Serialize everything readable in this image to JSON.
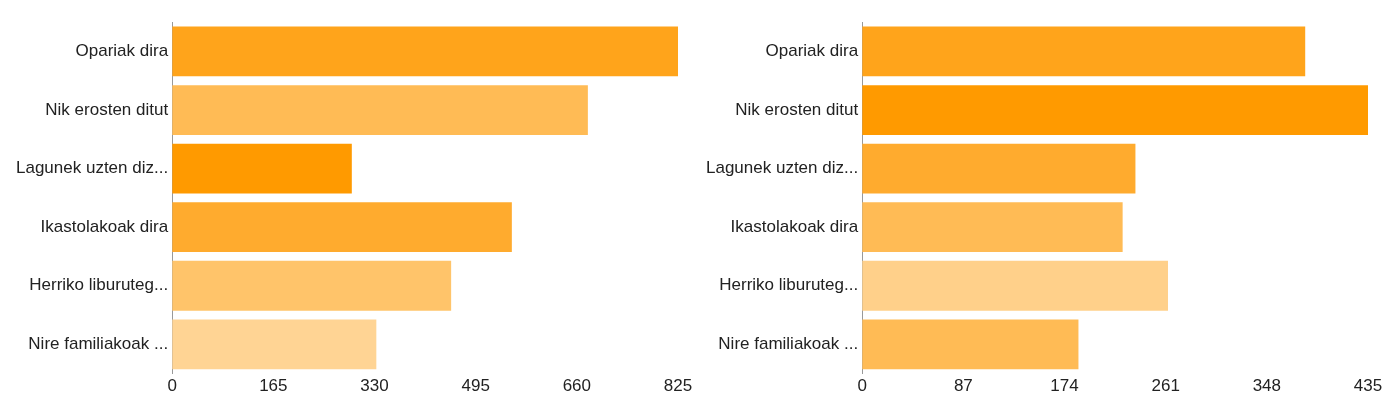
{
  "chart_data": [
    {
      "type": "bar",
      "orientation": "horizontal",
      "categories": [
        "Opariak dira",
        "Nik erosten ditut",
        "Lagunek uzten diz...",
        "Ikastolakoak dira",
        "Herriko liburuteg...",
        "Nire familiakoak ..."
      ],
      "values": [
        825,
        678,
        293,
        554,
        455,
        333
      ],
      "colors": [
        "#ffa41b",
        "#ffbb55",
        "#ff9a00",
        "#ffab2e",
        "#ffc46a",
        "#ffd494"
      ],
      "xlim": [
        0,
        825
      ],
      "xticks": [
        0,
        165,
        330,
        495,
        660,
        825
      ],
      "grid": false
    },
    {
      "type": "bar",
      "orientation": "horizontal",
      "categories": [
        "Opariak dira",
        "Nik erosten ditut",
        "Lagunek uzten diz...",
        "Ikastolakoak dira",
        "Herriko liburuteg...",
        "Nire familiakoak ..."
      ],
      "values": [
        381,
        435,
        235,
        224,
        263,
        186
      ],
      "colors": [
        "#ffa41b",
        "#ff9a00",
        "#ffab2e",
        "#ffbb55",
        "#ffd08a",
        "#ffbb55"
      ],
      "xlim": [
        0,
        435
      ],
      "xticks": [
        0,
        87,
        174,
        261,
        348,
        435
      ],
      "grid": false
    }
  ]
}
